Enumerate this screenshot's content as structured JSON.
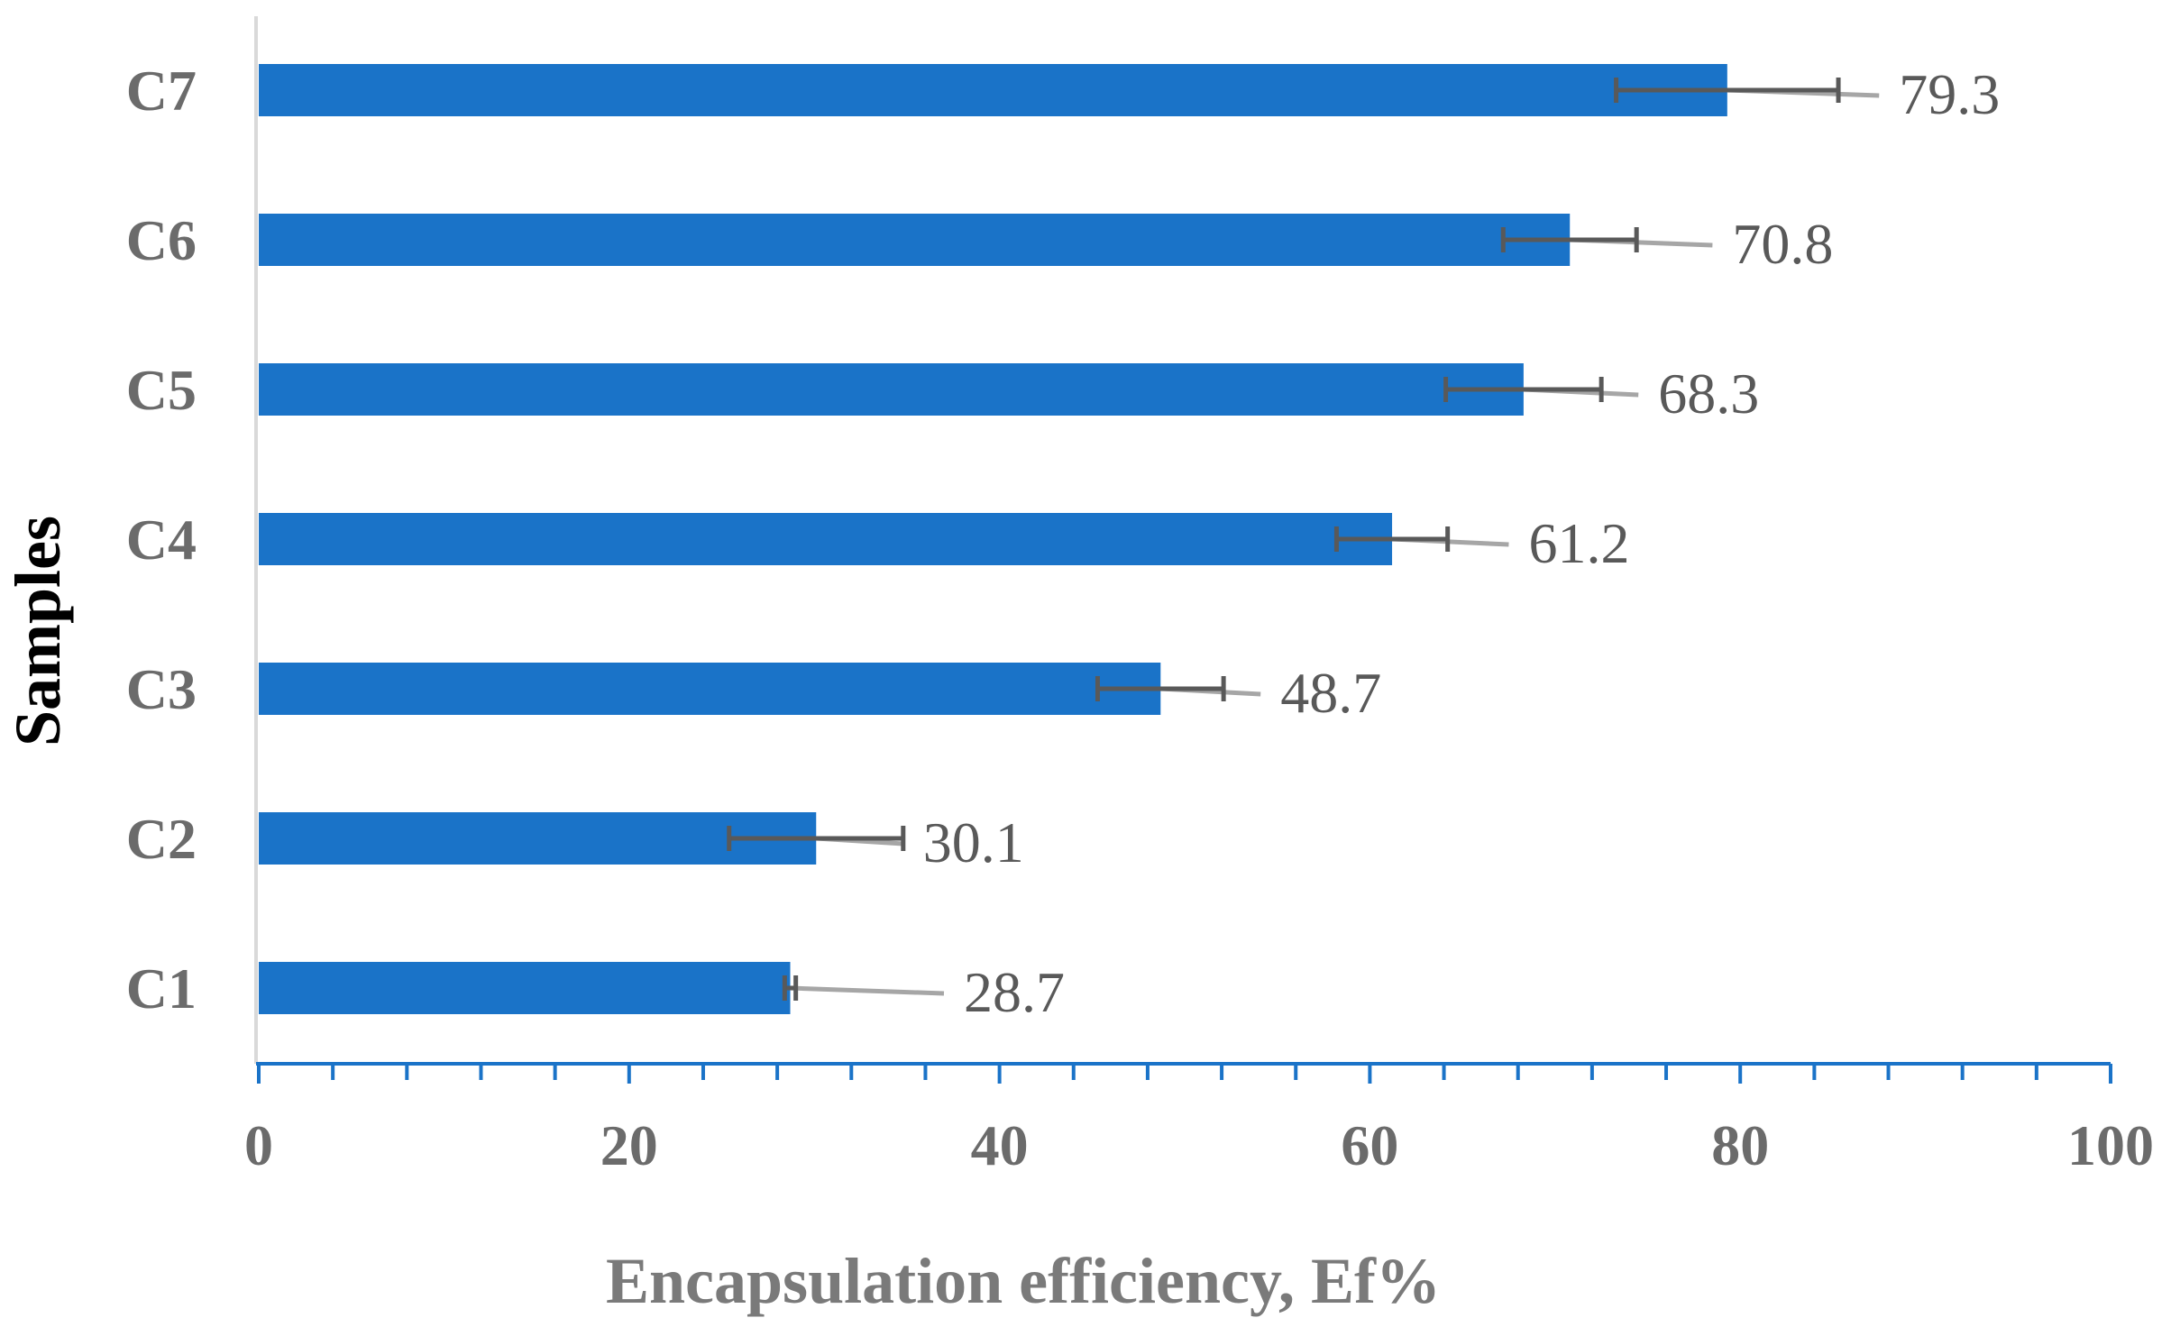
{
  "chart_data": {
    "type": "bar",
    "orientation": "horizontal",
    "title": "",
    "categories": [
      "C1",
      "C2",
      "C3",
      "C4",
      "C5",
      "C6",
      "C7"
    ],
    "values": [
      28.7,
      30.1,
      48.7,
      61.2,
      68.3,
      70.8,
      79.3
    ],
    "value_labels": [
      "28.7",
      "30.1",
      "48.7",
      "61.2",
      "68.3",
      "70.8",
      "79.3"
    ],
    "error_bars": {
      "minus": [
        0.3,
        4.7,
        3.4,
        3.0,
        4.2,
        3.6,
        6.0
      ],
      "plus": [
        8.3,
        4.7,
        5.4,
        6.3,
        6.2,
        7.7,
        8.2
      ],
      "plus_cap": [
        0.3,
        4.7,
        3.4,
        3.0,
        4.2,
        3.6,
        6.0
      ]
    },
    "xlabel": "Encapsulation efficiency, Ef%",
    "ylabel": "Samples",
    "xlim": [
      0,
      100
    ],
    "xticks": [
      0,
      20,
      40,
      60,
      80,
      100
    ],
    "xtick_labels": [
      "0",
      "20",
      "40",
      "60",
      "80",
      "100"
    ],
    "minor_tick_step": 4,
    "grid": false,
    "legend": "none",
    "colors": {
      "bar": "#1a73c8",
      "axis": "#1a73c8",
      "y_axis_line": "#d9d9d9",
      "error_minus": "#595959",
      "error_plus": "#a6a6a6"
    }
  }
}
